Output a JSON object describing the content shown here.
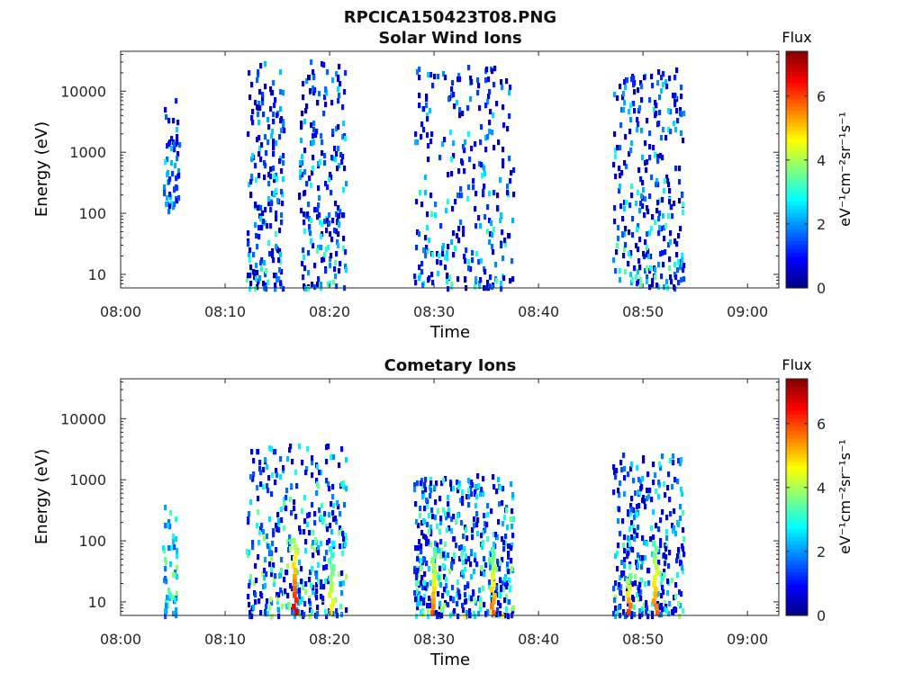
{
  "figure": {
    "title": "RPCICA150423T08.PNG"
  },
  "chart_data": [
    {
      "type": "heatmap",
      "title": "Solar Wind Ions",
      "xlabel": "Time",
      "ylabel": "Energy (eV)",
      "yscale": "log",
      "ylim": [
        6,
        45000
      ],
      "xlim": [
        "08:00",
        "09:03"
      ],
      "x_ticks": [
        "08:00",
        "08:10",
        "08:20",
        "08:30",
        "08:40",
        "08:50",
        "09:00"
      ],
      "y_ticks": [
        "10",
        "100",
        "1000",
        "10000"
      ],
      "colorbar": {
        "label": "Flux",
        "unit": "eV⁻¹cm⁻²sr⁻¹s⁻¹",
        "range": [
          0,
          7.4
        ],
        "ticks": [
          "0",
          "2",
          "4",
          "6"
        ],
        "colormap": "jet"
      },
      "grid": false,
      "bursts": [
        {
          "t0": "08:04:00",
          "t1": "08:05:30",
          "emin": 120,
          "emax": 8000,
          "cells": 55,
          "vmin": 0.6,
          "vmax": 3.2
        },
        {
          "t0": "08:12:00",
          "t1": "08:15:30",
          "emin": 6,
          "emax": 35000,
          "cells": 210,
          "vmin": 0.3,
          "vmax": 3.6
        },
        {
          "t0": "08:17:00",
          "t1": "08:21:30",
          "emin": 6,
          "emax": 35000,
          "cells": 220,
          "vmin": 0.3,
          "vmax": 3.6
        },
        {
          "t0": "08:28:00",
          "t1": "08:37:30",
          "emin": 6,
          "emax": 30000,
          "cells": 300,
          "vmin": 0.3,
          "vmax": 3.6
        },
        {
          "t0": "08:47:00",
          "t1": "08:53:50",
          "emin": 6,
          "emax": 25000,
          "cells": 300,
          "vmin": 0.3,
          "vmax": 3.8
        }
      ]
    },
    {
      "type": "heatmap",
      "title": "Cometary Ions",
      "xlabel": "Time",
      "ylabel": "Energy (eV)",
      "yscale": "log",
      "ylim": [
        6,
        45000
      ],
      "xlim": [
        "08:00",
        "09:03"
      ],
      "x_ticks": [
        "08:00",
        "08:10",
        "08:20",
        "08:30",
        "08:40",
        "08:50",
        "09:00"
      ],
      "y_ticks": [
        "10",
        "100",
        "1000",
        "10000"
      ],
      "colorbar": {
        "label": "Flux",
        "unit": "eV⁻¹cm⁻²sr⁻¹s⁻¹",
        "range": [
          0,
          7.4
        ],
        "ticks": [
          "0",
          "2",
          "4",
          "6"
        ],
        "colormap": "jet"
      },
      "grid": false,
      "bursts": [
        {
          "t0": "08:04:00",
          "t1": "08:05:20",
          "emin": 6,
          "emax": 550,
          "cells": 50,
          "vmin": 1.5,
          "vmax": 4.2
        },
        {
          "t0": "08:12:00",
          "t1": "08:21:30",
          "emin": 6,
          "emax": 4000,
          "cells": 380,
          "vmin": 0.5,
          "vmax": 4.6
        },
        {
          "t0": "08:28:00",
          "t1": "08:37:30",
          "emin": 6,
          "emax": 1300,
          "cells": 480,
          "vmin": 0.5,
          "vmax": 4.6
        },
        {
          "t0": "08:47:00",
          "t1": "08:53:50",
          "emin": 6,
          "emax": 3000,
          "cells": 320,
          "vmin": 0.4,
          "vmax": 4.2
        }
      ],
      "hot_columns": [
        {
          "t": "08:16:30",
          "emax": 110,
          "v": 7.0
        },
        {
          "t": "08:20:00",
          "emax": 100,
          "v": 5.0
        },
        {
          "t": "08:29:45",
          "emax": 80,
          "v": 6.0
        },
        {
          "t": "08:35:30",
          "emax": 80,
          "v": 6.0
        },
        {
          "t": "08:48:30",
          "emax": 30,
          "v": 6.5
        },
        {
          "t": "08:51:00",
          "emax": 100,
          "v": 6.0
        }
      ]
    }
  ]
}
